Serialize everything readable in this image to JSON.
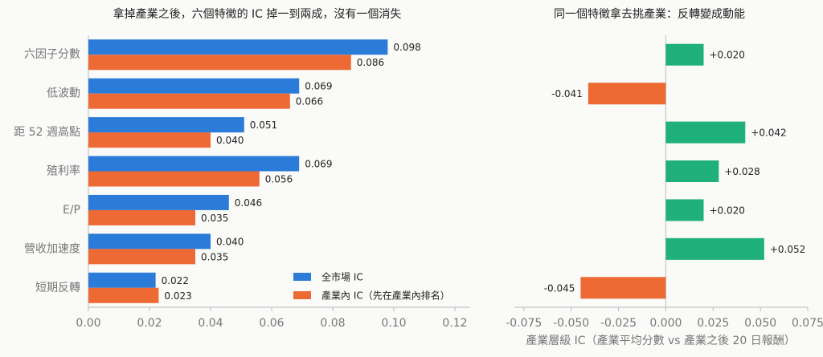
{
  "chart_data": [
    {
      "type": "barh",
      "title": "拿掉產業之後，六個特徵的 IC 掉一到兩成，沒有一個消失",
      "categories": [
        "六因子分數",
        "低波動",
        "距 52 週高點",
        "殖利率",
        "E/P",
        "營收加速度",
        "短期反轉"
      ],
      "series": [
        {
          "name": "全市場 IC",
          "color": "#2b7bd9",
          "values": [
            0.098,
            0.069,
            0.051,
            0.069,
            0.046,
            0.04,
            0.022
          ],
          "value_labels": [
            "0.098",
            "0.069",
            "0.051",
            "0.069",
            "0.046",
            "0.040",
            "0.022"
          ]
        },
        {
          "name": "產業內 IC（先在產業內排名）",
          "color": "#ee6a35",
          "values": [
            0.086,
            0.066,
            0.04,
            0.056,
            0.035,
            0.035,
            0.023
          ],
          "value_labels": [
            "0.086",
            "0.066",
            "0.040",
            "0.056",
            "0.035",
            "0.035",
            "0.023"
          ]
        }
      ],
      "xlim": [
        0,
        0.125
      ],
      "xticks": [
        {
          "value": 0,
          "label": "0.00"
        },
        {
          "value": 0.02,
          "label": "0.02"
        },
        {
          "value": 0.04,
          "label": "0.04"
        },
        {
          "value": 0.06,
          "label": "0.06"
        },
        {
          "value": 0.08,
          "label": "0.08"
        },
        {
          "value": 0.1,
          "label": "0.10"
        },
        {
          "value": 0.12,
          "label": "0.12"
        }
      ],
      "legend": "lower right"
    },
    {
      "type": "diverging-barh",
      "title": "同一個特徵拿去挑產業：反轉變成動能",
      "xlabel": "產業層級 IC（產業平均分數 vs 產業之後 20 日報酬）",
      "values": [
        0.02,
        -0.041,
        0.042,
        0.028,
        0.02,
        0.052,
        -0.045
      ],
      "value_labels": [
        "+0.020",
        "-0.041",
        "+0.042",
        "+0.028",
        "+0.020",
        "+0.052",
        "-0.045"
      ],
      "positive_color": "#1fb07c",
      "negative_color": "#ee6a35",
      "xlim": [
        -0.08,
        0.075
      ],
      "xticks": [
        {
          "value": -0.075,
          "label": "-0.075"
        },
        {
          "value": -0.05,
          "label": "-0.050"
        },
        {
          "value": -0.025,
          "label": "-0.025"
        },
        {
          "value": 0,
          "label": "0.000"
        },
        {
          "value": 0.025,
          "label": "0.025"
        },
        {
          "value": 0.05,
          "label": "0.050"
        },
        {
          "value": 0.075,
          "label": "0.075"
        }
      ]
    }
  ]
}
